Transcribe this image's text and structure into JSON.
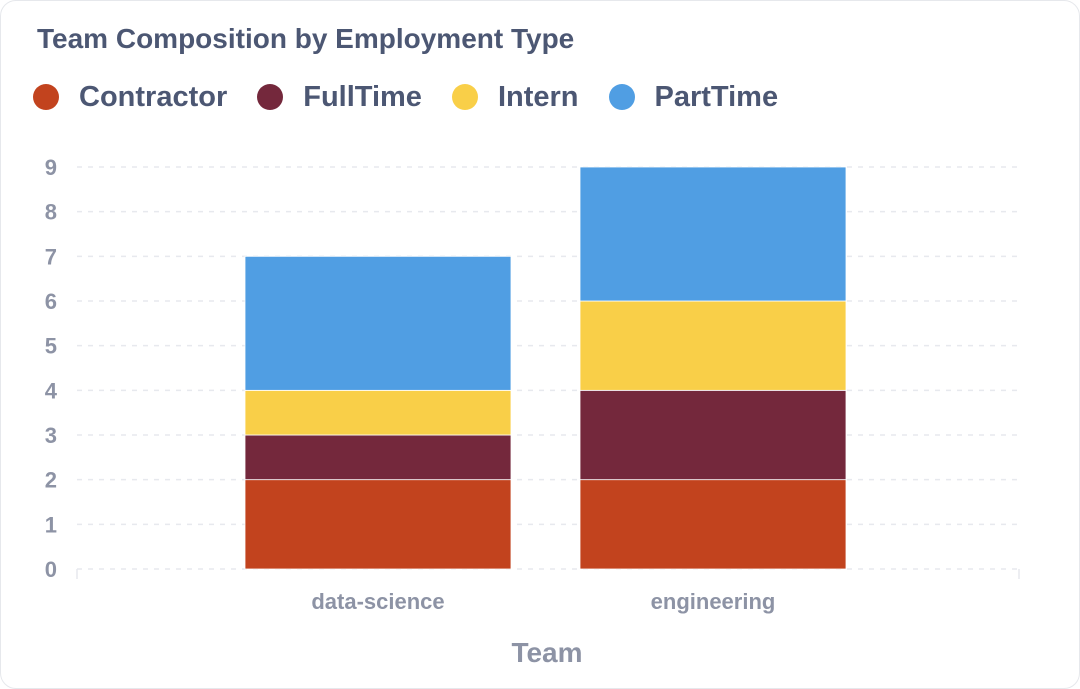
{
  "chart_data": {
    "type": "bar",
    "stacked": true,
    "title": "Team Composition by Employment Type",
    "xlabel": "Team",
    "ylabel": "",
    "categories": [
      "data-science",
      "engineering"
    ],
    "series": [
      {
        "name": "Contractor",
        "color": "#c2431e",
        "values": [
          2,
          2
        ]
      },
      {
        "name": "FullTime",
        "color": "#74283c",
        "values": [
          1,
          2
        ]
      },
      {
        "name": "Intern",
        "color": "#f9cf48",
        "values": [
          1,
          2
        ]
      },
      {
        "name": "PartTime",
        "color": "#509ee3",
        "values": [
          3,
          3
        ]
      }
    ],
    "ylim": [
      0,
      9
    ],
    "yticks": [
      "0",
      "1",
      "2",
      "3",
      "4",
      "5",
      "6",
      "7",
      "8",
      "9"
    ],
    "grid": true,
    "legend_position": "top-left"
  }
}
